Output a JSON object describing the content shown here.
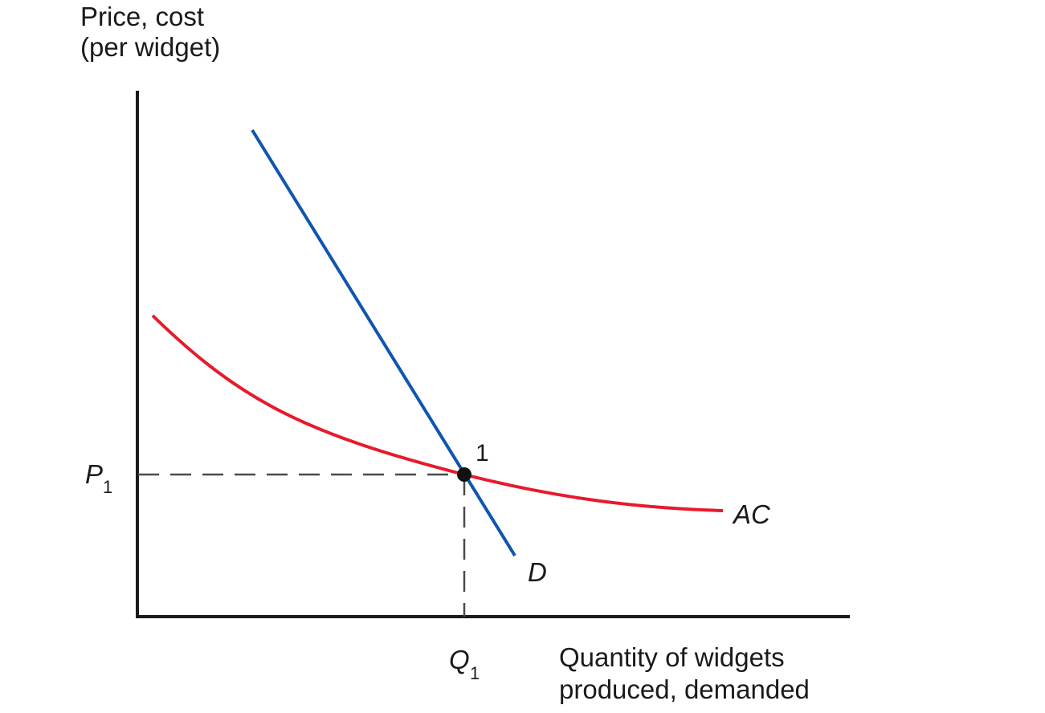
{
  "chart_data": {
    "type": "line",
    "title": "",
    "ylabel_lines": [
      "Price, cost",
      "(per widget)"
    ],
    "xlabel_lines": [
      "Quantity of widgets",
      "produced, demanded"
    ],
    "series": [
      {
        "name": "AC",
        "color": "#e8192c"
      },
      {
        "name": "D",
        "color": "#1055b0"
      }
    ],
    "point": {
      "label": "1"
    },
    "price_tick": {
      "main": "P",
      "sub": "1"
    },
    "quantity_tick": {
      "main": "Q",
      "sub": "1"
    },
    "grid": false,
    "axis_ticks": false
  }
}
